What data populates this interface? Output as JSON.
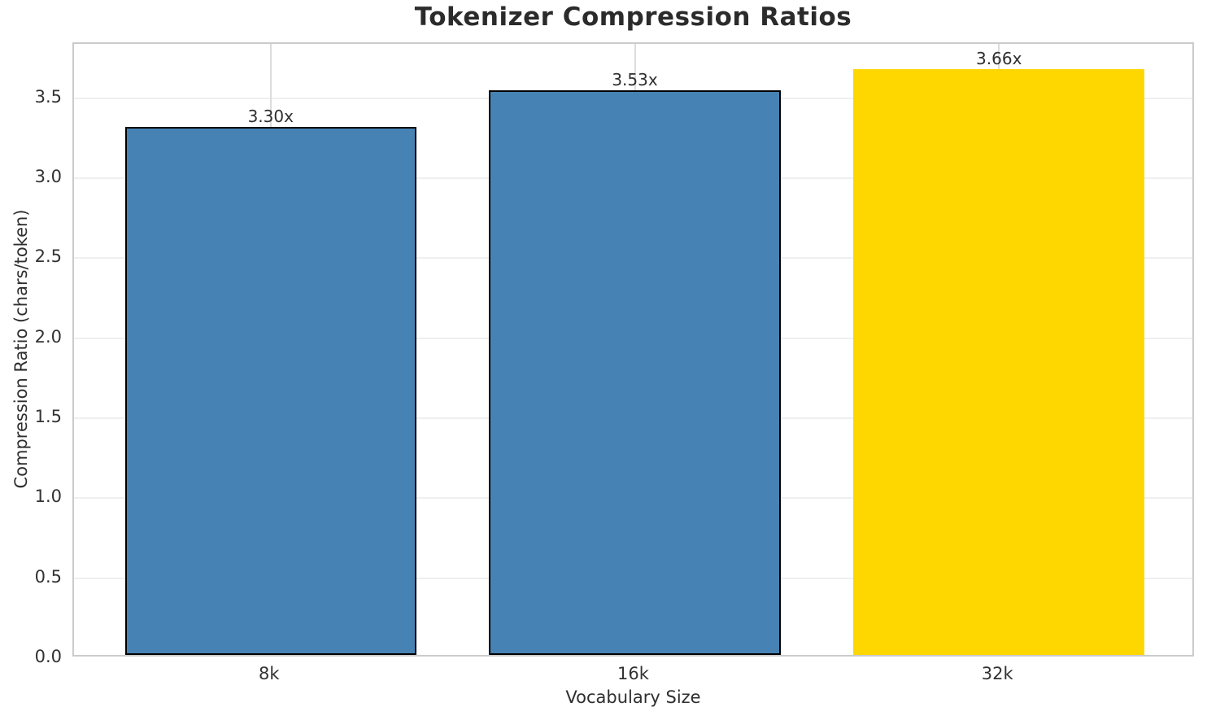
{
  "chart_data": {
    "type": "bar",
    "title": "Tokenizer Compression Ratios",
    "xlabel": "Vocabulary Size",
    "ylabel": "Compression Ratio (chars/token)",
    "categories": [
      "8k",
      "16k",
      "32k"
    ],
    "values": [
      3.3,
      3.53,
      3.66
    ],
    "value_labels": [
      "3.30x",
      "3.53x",
      "3.66x"
    ],
    "bar_colors": [
      "#4682b4",
      "#4682b4",
      "#ffd700"
    ],
    "bar_edge_colors": [
      "#000000",
      "#000000",
      "none"
    ],
    "ylim": [
      0,
      3.84
    ],
    "yticks": [
      0.0,
      0.5,
      1.0,
      1.5,
      2.0,
      2.5,
      3.0,
      3.5
    ],
    "ytick_labels": [
      "0.0",
      "0.5",
      "1.0",
      "1.5",
      "2.0",
      "2.5",
      "3.0",
      "3.5"
    ],
    "grid": true,
    "grid_axes": "both",
    "legend_position": "none",
    "background_color": "#ffffff",
    "highlight_color": "#ffd700",
    "default_bar_color": "#4682b4"
  }
}
